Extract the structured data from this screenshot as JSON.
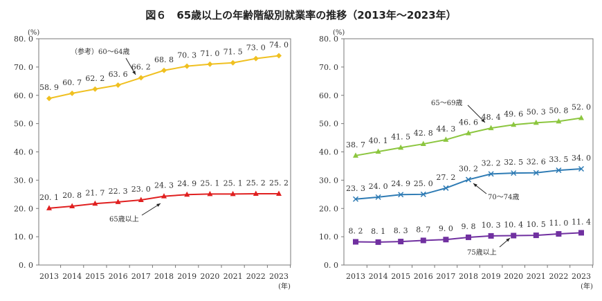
{
  "chart_data": {
    "title": "図６　65歳以上の年齢階級別就業率の推移（2013年～2023年）",
    "charts": [
      {
        "type": "line",
        "unit_label": "(%)",
        "x_unit_label": "(年)",
        "x": [
          "2013",
          "2014",
          "2015",
          "2016",
          "2017",
          "2018",
          "2019",
          "2020",
          "2021",
          "2022",
          "2023"
        ],
        "ylim": [
          0,
          80
        ],
        "yticks": [
          "0.0",
          "10.0",
          "20.0",
          "30.0",
          "40.0",
          "50.0",
          "60.0",
          "70.0",
          "80.0"
        ],
        "grid": false,
        "series": [
          {
            "name": "（参考）60～64歳",
            "color": "#F0C020",
            "marker": "diamond",
            "values": [
              58.9,
              60.7,
              62.2,
              63.6,
              66.2,
              68.8,
              70.3,
              71.0,
              71.5,
              73.0,
              74.0
            ],
            "labels": [
              "58.9",
              "60.7",
              "62.2",
              "63.6",
              "66.2",
              "68.8",
              "70.3",
              "71.0",
              "71.5",
              "73.0",
              "74.0"
            ]
          },
          {
            "name": "65歳以上",
            "color": "#E02020",
            "marker": "triangle",
            "values": [
              20.1,
              20.8,
              21.7,
              22.3,
              23.0,
              24.3,
              24.9,
              25.1,
              25.1,
              25.2,
              25.2
            ],
            "labels": [
              "20.1",
              "20.8",
              "21.7",
              "22.3",
              "23.0",
              "24.3",
              "24.9",
              "25.1",
              "25.1",
              "25.2",
              "25.2"
            ]
          }
        ]
      },
      {
        "type": "line",
        "unit_label": "(%)",
        "x_unit_label": "(年)",
        "x": [
          "2013",
          "2014",
          "2015",
          "2016",
          "2017",
          "2018",
          "2019",
          "2020",
          "2021",
          "2022",
          "2023"
        ],
        "ylim": [
          0,
          80
        ],
        "yticks": [
          "0.0",
          "10.0",
          "20.0",
          "30.0",
          "40.0",
          "50.0",
          "60.0",
          "70.0",
          "80.0"
        ],
        "grid": false,
        "series": [
          {
            "name": "65～69歳",
            "color": "#8CC63F",
            "marker": "triangle",
            "values": [
              38.7,
              40.1,
              41.5,
              42.8,
              44.3,
              46.6,
              48.4,
              49.6,
              50.3,
              50.8,
              52.0
            ],
            "labels": [
              "38.7",
              "40.1",
              "41.5",
              "42.8",
              "44.3",
              "46.6",
              "48.4",
              "49.6",
              "50.3",
              "50.8",
              "52.0"
            ]
          },
          {
            "name": "70～74歳",
            "color": "#2E7BB4",
            "marker": "x",
            "values": [
              23.3,
              24.0,
              24.9,
              25.0,
              27.2,
              30.2,
              32.2,
              32.5,
              32.6,
              33.5,
              34.0
            ],
            "labels": [
              "23.3",
              "24.0",
              "24.9",
              "25.0",
              "27.2",
              "30.2",
              "32.2",
              "32.5",
              "32.6",
              "33.5",
              "34.0"
            ]
          },
          {
            "name": "75歳以上",
            "color": "#7030A0",
            "marker": "square",
            "values": [
              8.2,
              8.1,
              8.3,
              8.7,
              9.0,
              9.8,
              10.3,
              10.4,
              10.5,
              11.0,
              11.4
            ],
            "labels": [
              "8.2",
              "8.1",
              "8.3",
              "8.7",
              "9.0",
              "9.8",
              "10.3",
              "10.4",
              "10.5",
              "11.0",
              "11.4"
            ]
          }
        ]
      }
    ]
  }
}
